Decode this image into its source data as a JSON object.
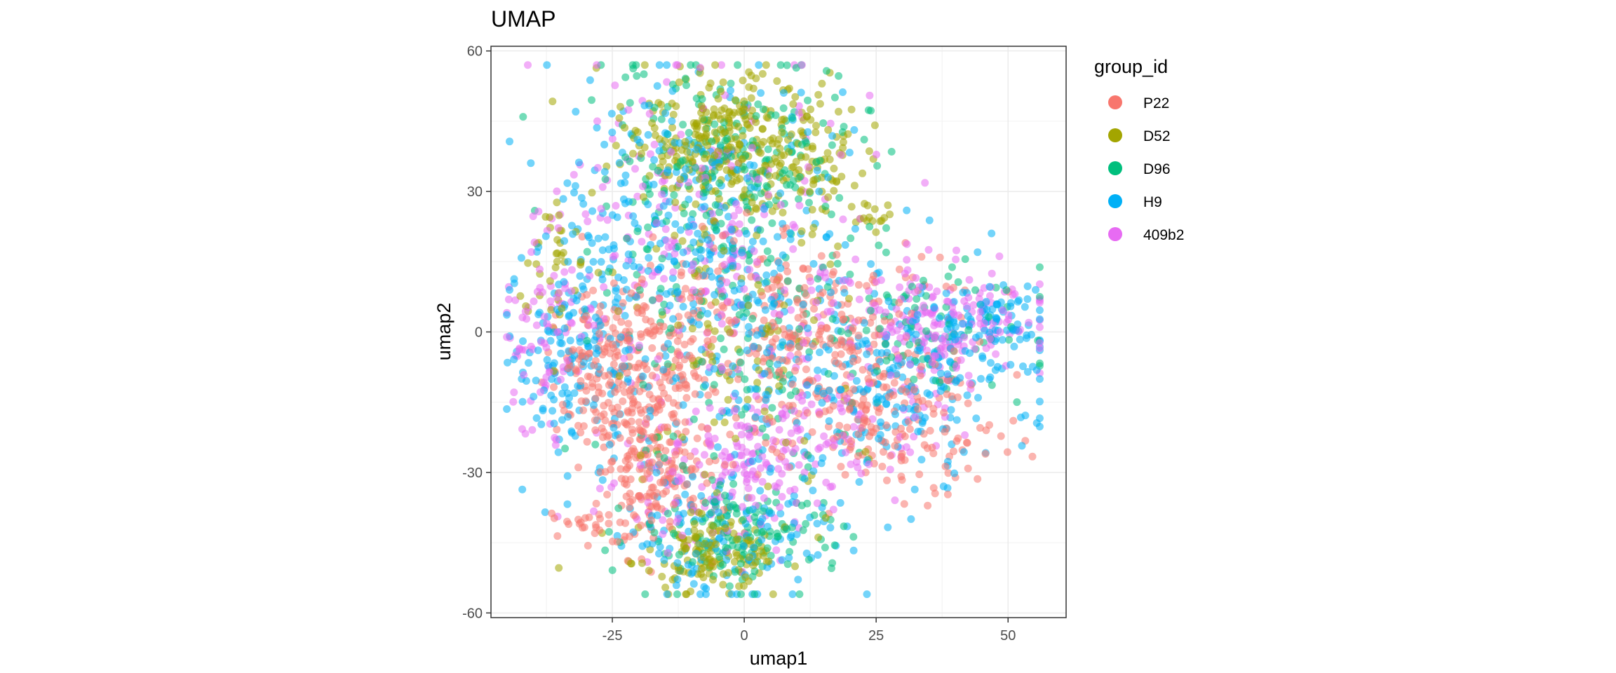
{
  "chart_data": {
    "type": "scatter",
    "title": "UMAP",
    "xlabel": "umap1",
    "ylabel": "umap2",
    "xlim": [
      -48,
      61
    ],
    "ylim": [
      -61,
      61
    ],
    "x_ticks": [
      -25,
      0,
      25,
      50
    ],
    "x_tick_labels": [
      "-25",
      "0",
      "25",
      "50"
    ],
    "y_ticks": [
      -60,
      -30,
      0,
      30,
      60
    ],
    "y_tick_labels": [
      "-60",
      "-30",
      "0",
      "30",
      "60"
    ],
    "grid": true,
    "legend": {
      "title": "group_id",
      "position": "right"
    },
    "series": [
      {
        "name": "P22",
        "color": "#F8766D"
      },
      {
        "name": "D52",
        "color": "#A3A500"
      },
      {
        "name": "D96",
        "color": "#00BF7D"
      },
      {
        "name": "H9",
        "color": "#00B0F6"
      },
      {
        "name": "409b2",
        "color": "#E76BF3"
      }
    ],
    "clusters": [
      {
        "series": "D52",
        "cx": -5,
        "cy": 40,
        "sx": 9,
        "sy": 8,
        "n": 300
      },
      {
        "series": "D52",
        "cx": -7,
        "cy": -47,
        "sx": 7,
        "sy": 4,
        "n": 140
      },
      {
        "series": "D52",
        "cx": 12,
        "cy": 35,
        "sx": 5,
        "sy": 8,
        "n": 70
      },
      {
        "series": "D52",
        "cx": -36,
        "cy": 15,
        "sx": 4,
        "sy": 8,
        "n": 40
      },
      {
        "series": "D52",
        "cx": 24,
        "cy": 25,
        "sx": 2,
        "sy": 2,
        "n": 15
      },
      {
        "series": "D52",
        "cx": -2,
        "cy": -5,
        "sx": 12,
        "sy": 14,
        "n": 90
      },
      {
        "series": "D96",
        "cx": -2,
        "cy": 35,
        "sx": 12,
        "sy": 12,
        "n": 230
      },
      {
        "series": "D96",
        "cx": 0,
        "cy": -43,
        "sx": 10,
        "sy": 6,
        "n": 140
      },
      {
        "series": "D96",
        "cx": 0,
        "cy": -5,
        "sx": 14,
        "sy": 14,
        "n": 120
      },
      {
        "series": "D96",
        "cx": 35,
        "cy": 0,
        "sx": 10,
        "sy": 7,
        "n": 80
      },
      {
        "series": "H9",
        "cx": -10,
        "cy": 25,
        "sx": 13,
        "sy": 15,
        "n": 260
      },
      {
        "series": "H9",
        "cx": -33,
        "cy": -5,
        "sx": 6,
        "sy": 12,
        "n": 150
      },
      {
        "series": "H9",
        "cx": 30,
        "cy": -12,
        "sx": 14,
        "sy": 10,
        "n": 220
      },
      {
        "series": "H9",
        "cx": -3,
        "cy": -42,
        "sx": 11,
        "sy": 8,
        "n": 150
      },
      {
        "series": "H9",
        "cx": 45,
        "cy": 3,
        "sx": 6,
        "sy": 4,
        "n": 90
      },
      {
        "series": "H9",
        "cx": 0,
        "cy": 0,
        "sx": 14,
        "sy": 12,
        "n": 140
      },
      {
        "series": "409b2",
        "cx": -8,
        "cy": 20,
        "sx": 14,
        "sy": 16,
        "n": 230
      },
      {
        "series": "409b2",
        "cx": 38,
        "cy": 2,
        "sx": 10,
        "sy": 6,
        "n": 200
      },
      {
        "series": "409b2",
        "cx": -5,
        "cy": -32,
        "sx": 11,
        "sy": 8,
        "n": 150
      },
      {
        "series": "409b2",
        "cx": -38,
        "cy": 0,
        "sx": 4,
        "sy": 10,
        "n": 80
      },
      {
        "series": "409b2",
        "cx": 15,
        "cy": -20,
        "sx": 12,
        "sy": 8,
        "n": 110
      },
      {
        "series": "P22",
        "cx": -22,
        "cy": -10,
        "sx": 7,
        "sy": 10,
        "n": 280
      },
      {
        "series": "P22",
        "cx": 15,
        "cy": -5,
        "sx": 14,
        "sy": 10,
        "n": 260
      },
      {
        "series": "P22",
        "cx": -17,
        "cy": -30,
        "sx": 6,
        "sy": 8,
        "n": 160
      },
      {
        "series": "P22",
        "cx": 30,
        "cy": -22,
        "sx": 8,
        "sy": 6,
        "n": 110
      },
      {
        "series": "P22",
        "cx": -30,
        "cy": -40,
        "sx": 3,
        "sy": 2,
        "n": 20
      },
      {
        "series": "P22",
        "cx": 0,
        "cy": 5,
        "sx": 10,
        "sy": 10,
        "n": 90
      }
    ]
  }
}
